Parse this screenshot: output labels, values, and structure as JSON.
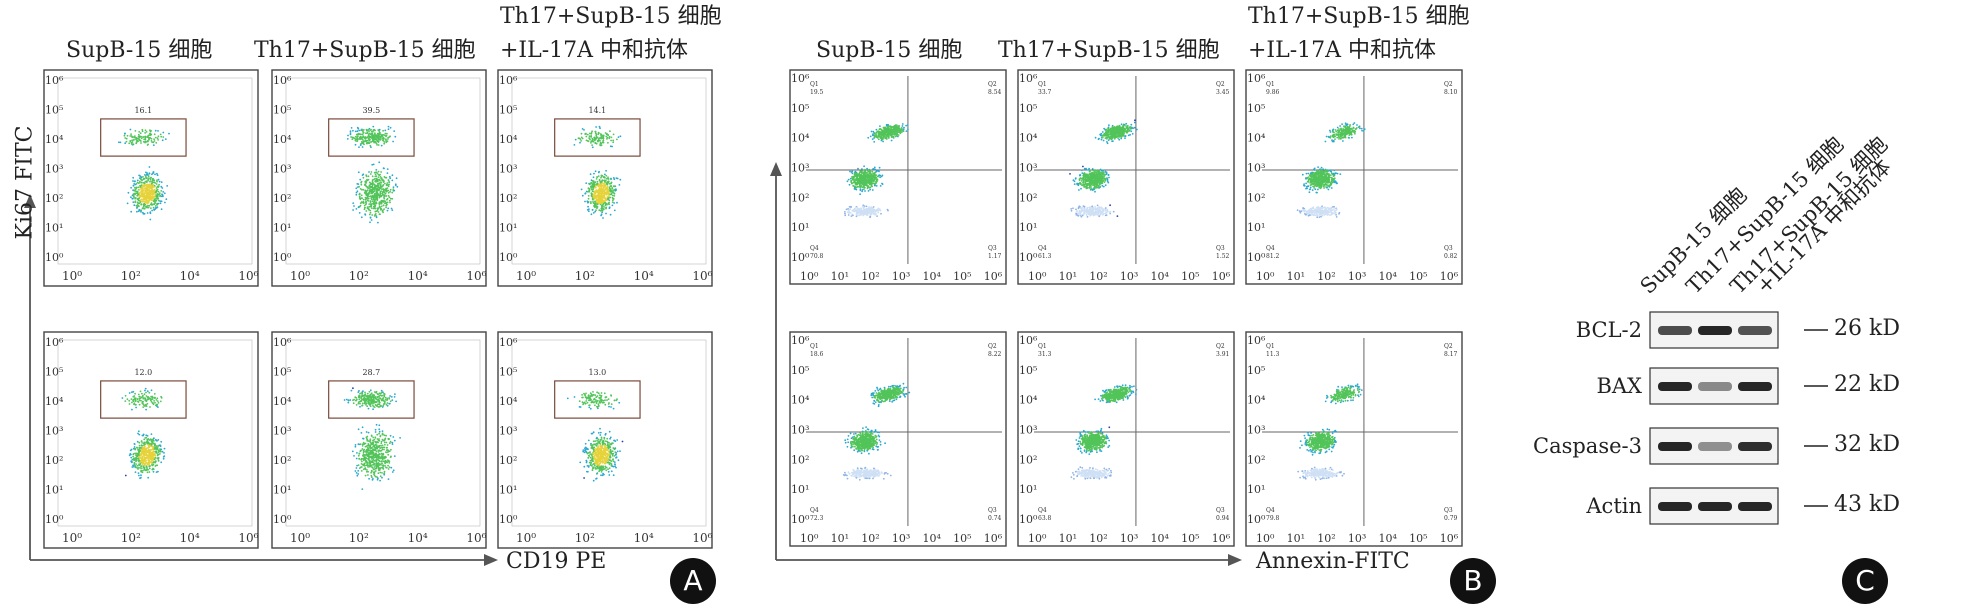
{
  "panel_a": {
    "y_axis_label": "Ki67 FITC",
    "x_axis_label": "CD19 PE",
    "badge": "A",
    "columns": [
      "SupB-15 细胞",
      "Th17+SupB-15 细胞",
      "Th17+SupB-15 细胞",
      "+IL-17A 中和抗体"
    ],
    "gate_values_row1": [
      "16.1",
      "39.5",
      "14.1"
    ],
    "gate_values_row2": [
      "12.0",
      "28.7",
      "13.0"
    ],
    "x_ticks": [
      "10⁰",
      "10²",
      "10⁴",
      "10⁶"
    ],
    "y_ticks": [
      "10⁶",
      "10⁵",
      "10⁴",
      "10³",
      "10²",
      "10¹",
      "10⁰"
    ]
  },
  "panel_b": {
    "x_axis_label": "Annexin-FITC",
    "badge": "B",
    "columns": [
      "SupB-15 细胞",
      "Th17+SupB-15 细胞",
      "Th17+SupB-15 细胞",
      "+IL-17A 中和抗体"
    ],
    "x_ticks": [
      "10⁰",
      "10¹",
      "10²",
      "10³",
      "10⁴",
      "10⁵",
      "10⁶"
    ],
    "y_ticks": [
      "10⁶",
      "10⁵",
      "10⁴",
      "10³",
      "10²",
      "10¹",
      "10⁰"
    ],
    "quadrants_row1": [
      {
        "q1": "19.5",
        "q2": "8.54",
        "q3": "1.17",
        "q4": "70.8"
      },
      {
        "q1": "33.7",
        "q2": "3.45",
        "q3": "1.52",
        "q4": "61.3"
      },
      {
        "q1": "9.86",
        "q2": "8.10",
        "q3": "0.82",
        "q4": "81.2"
      }
    ],
    "quadrants_row2": [
      {
        "q1": "18.6",
        "q2": "8.22",
        "q3": "0.74",
        "q4": "72.3"
      },
      {
        "q1": "31.3",
        "q2": "3.91",
        "q3": "0.94",
        "q4": "63.8"
      },
      {
        "q1": "11.3",
        "q2": "8.17",
        "q3": "0.79",
        "q4": "79.8"
      }
    ],
    "quadrant_names": [
      "Q1",
      "Q2",
      "Q3",
      "Q4"
    ]
  },
  "panel_c": {
    "badge": "C",
    "lanes": [
      "SupB-15 细胞",
      "Th17+SupB-15 细胞",
      "Th17+SupB-15 细胞",
      "+IL-17A 中和抗体"
    ],
    "proteins": [
      {
        "name": "BCL-2",
        "kd": "26 kD"
      },
      {
        "name": "BAX",
        "kd": "22 kD"
      },
      {
        "name": "Caspase-3",
        "kd": "32 kD"
      },
      {
        "name": "Actin",
        "kd": "43 kD"
      }
    ]
  },
  "colors": {
    "dots_blue": "#2a3fa8",
    "dots_cyan": "#29a8d0",
    "dots_green": "#52c45a",
    "dots_yellow": "#e6d23a",
    "frame": "#444444",
    "band": "#1a1a1a"
  }
}
